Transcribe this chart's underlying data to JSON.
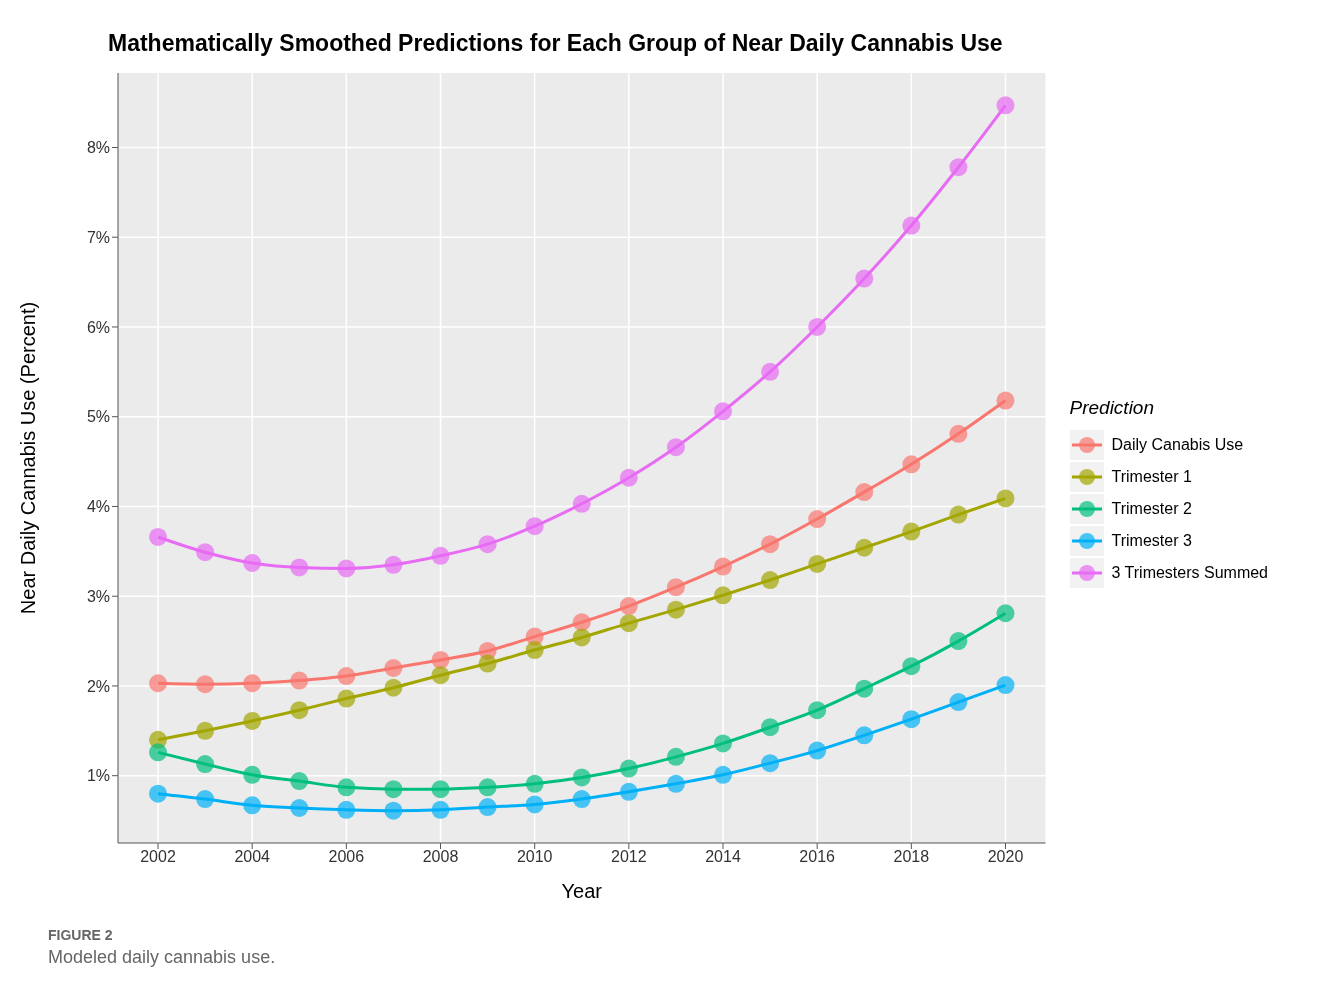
{
  "chart_data": {
    "type": "line",
    "title": "Mathematically Smoothed Predictions for Each Group of Near Daily Cannabis Use",
    "xlabel": "Year",
    "ylabel": "Near Daily Cannabis Use (Percent)",
    "legend_title": "Prediction",
    "annotations": [
      "FIGURE 2",
      "Modeled daily cannabis use."
    ],
    "x": [
      2002,
      2003,
      2004,
      2005,
      2006,
      2007,
      2008,
      2009,
      2010,
      2011,
      2012,
      2013,
      2014,
      2015,
      2016,
      2017,
      2018,
      2019,
      2020
    ],
    "series": [
      {
        "name": "Daily Canabis Use",
        "color": "#f8766d",
        "values": [
          2.03,
          2.02,
          2.03,
          2.06,
          2.11,
          2.2,
          2.29,
          2.39,
          2.55,
          2.71,
          2.89,
          3.1,
          3.33,
          3.58,
          3.86,
          4.16,
          4.47,
          4.81,
          5.18
        ]
      },
      {
        "name": "Trimester 1",
        "color": "#a3a500",
        "values": [
          1.4,
          1.5,
          1.61,
          1.73,
          1.86,
          1.98,
          2.12,
          2.25,
          2.4,
          2.54,
          2.7,
          2.85,
          3.01,
          3.18,
          3.36,
          3.54,
          3.72,
          3.91,
          4.09
        ]
      },
      {
        "name": "Trimester 2",
        "color": "#00bf7d",
        "values": [
          1.26,
          1.13,
          1.01,
          0.94,
          0.87,
          0.85,
          0.85,
          0.87,
          0.91,
          0.98,
          1.08,
          1.21,
          1.36,
          1.54,
          1.73,
          1.97,
          2.22,
          2.5,
          2.81
        ]
      },
      {
        "name": "Trimester 3",
        "color": "#00b0f6",
        "values": [
          0.8,
          0.74,
          0.67,
          0.64,
          0.62,
          0.61,
          0.62,
          0.65,
          0.68,
          0.74,
          0.82,
          0.91,
          1.01,
          1.14,
          1.28,
          1.45,
          1.63,
          1.82,
          2.01
        ]
      },
      {
        "name": "3 Trimesters Summed",
        "color": "#e76bf3",
        "values": [
          3.66,
          3.49,
          3.37,
          3.32,
          3.31,
          3.35,
          3.45,
          3.58,
          3.78,
          4.03,
          4.32,
          4.66,
          5.06,
          5.5,
          6,
          6.54,
          7.13,
          7.78,
          8.47
        ]
      }
    ],
    "xlim": [
      2001.15,
      2020.85
    ],
    "xticks": [
      2002,
      2004,
      2006,
      2008,
      2010,
      2012,
      2014,
      2016,
      2018,
      2020
    ],
    "ylim": [
      0.25,
      8.83
    ],
    "yticks": [
      {
        "value": 1,
        "label": "1%"
      },
      {
        "value": 2,
        "label": "2%"
      },
      {
        "value": 3,
        "label": "3%"
      },
      {
        "value": 4,
        "label": "4%"
      },
      {
        "value": 5,
        "label": "5%"
      },
      {
        "value": 6,
        "label": "6%"
      },
      {
        "value": 7,
        "label": "7%"
      },
      {
        "value": 8,
        "label": "8%"
      }
    ],
    "grid": true,
    "legend": "right",
    "marker": "circle",
    "line_style": "solid"
  }
}
